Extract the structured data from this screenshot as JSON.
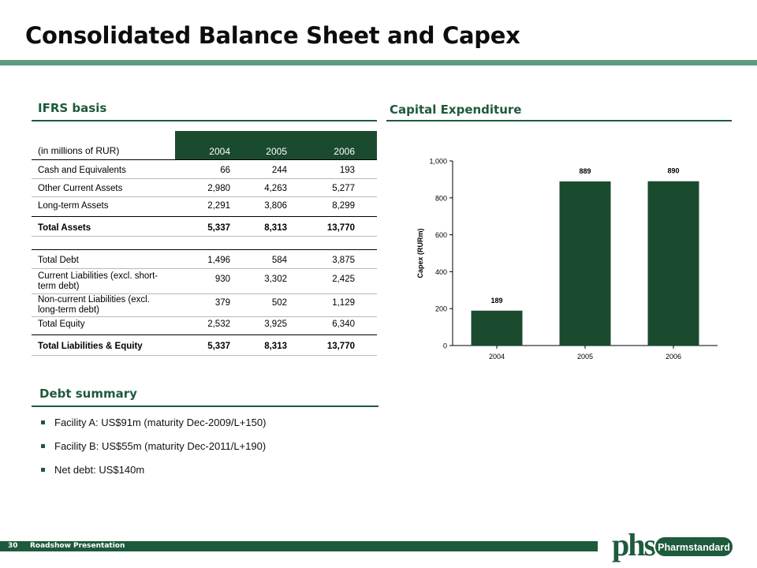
{
  "page": {
    "title": "Consolidated Balance Sheet and Capex",
    "footer_number": "30",
    "footer_text": "Roadshow Presentation",
    "logo_text": "Pharmstandard",
    "logo_mark": "phs"
  },
  "colors": {
    "accent": "#1e5a3c",
    "header_fill": "#1a4b2f",
    "title_bar": "#5d9c80",
    "bar": "#1a4b2f"
  },
  "left": {
    "heading": "IFRS basis",
    "table": {
      "header": [
        "(in millions of RUR)",
        "2004",
        "2005",
        "2006"
      ],
      "rows": [
        [
          "Cash and Equivalents",
          "66",
          "244",
          "193"
        ],
        [
          "Other Current Assets",
          "2,980",
          "4,263",
          "5,277"
        ],
        [
          "Long-term Assets",
          "2,291",
          "3,806",
          "8,299"
        ],
        [
          "Total Assets",
          "5,337",
          "8,313",
          "13,770"
        ],
        [
          "Total Debt",
          "1,496",
          "584",
          "3,875"
        ],
        [
          "Current Liabilities (excl. short-term debt)",
          "930",
          "3,302",
          "2,425"
        ],
        [
          "Non-current Liabilities (excl. long-term debt)",
          "379",
          "502",
          "1,129"
        ],
        [
          "Total Equity",
          "2,532",
          "3,925",
          "6,340"
        ],
        [
          "Total Liabilities & Equity",
          "5,337",
          "8,313",
          "13,770"
        ]
      ],
      "row_label_lines": {
        "current_liab": [
          "Current Liabilities (excl. short-",
          "term debt)"
        ],
        "noncurrent_liab": [
          "Non-current Liabilities (excl.",
          "long-term debt)"
        ]
      }
    },
    "debt_heading": "Debt summary",
    "debt_items": [
      "Facility A: US$91m (maturity Dec-2009/L+150)",
      "Facility B: US$55m (maturity Dec-2011/L+190)",
      "Net debt: US$140m"
    ]
  },
  "right": {
    "heading": "Capital Expenditure"
  },
  "chart_data": {
    "type": "bar",
    "categories": [
      "2004",
      "2005",
      "2006"
    ],
    "values": [
      189,
      889,
      890
    ],
    "data_labels": [
      "189",
      "889",
      "890"
    ],
    "title": "",
    "xlabel": "",
    "ylabel": "Capex (RURm)",
    "ylim": [
      0,
      1000
    ],
    "yticks": [
      "0",
      "200",
      "400",
      "600",
      "800",
      "1,000"
    ],
    "ytick_values": [
      0,
      200,
      400,
      600,
      800,
      1000
    ],
    "grid": false
  }
}
